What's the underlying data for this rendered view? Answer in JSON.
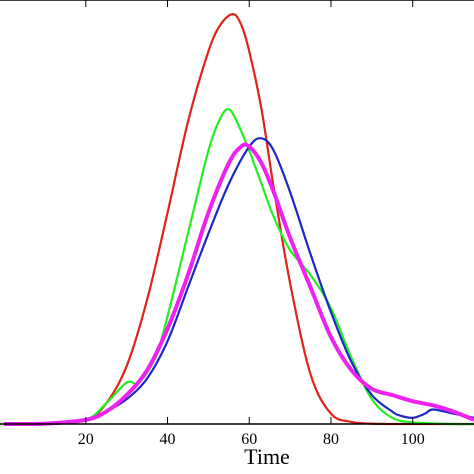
{
  "chart_data": {
    "type": "line",
    "xlabel": "Time",
    "ylabel": "",
    "title": "",
    "xlim": [
      -1,
      115
    ],
    "ylim": [
      0,
      1
    ],
    "xticks": [
      20,
      40,
      60,
      80,
      100
    ],
    "xtick_labels": [
      "20",
      "40",
      "60",
      "80",
      "100"
    ],
    "grid": false,
    "series": [
      {
        "color": "#e0231c",
        "x": [
          0,
          10,
          20,
          25,
          30,
          35,
          40,
          45,
          50,
          53,
          56,
          58,
          60,
          63,
          66,
          70,
          75,
          80,
          85,
          90,
          95,
          100,
          110,
          115
        ],
        "y": [
          0,
          0.001,
          0.01,
          0.05,
          0.14,
          0.3,
          0.51,
          0.73,
          0.9,
          0.965,
          0.99,
          0.965,
          0.9,
          0.76,
          0.57,
          0.34,
          0.12,
          0.025,
          0.005,
          0.001,
          0,
          0,
          0,
          0
        ]
      },
      {
        "color": "#22ee22",
        "x": [
          0,
          10,
          20,
          25,
          30,
          33,
          37,
          40,
          45,
          50,
          53,
          55,
          57,
          60,
          63,
          66,
          70,
          75,
          80,
          85,
          90,
          95,
          100,
          110,
          115
        ],
        "y": [
          0,
          0.001,
          0.01,
          0.05,
          0.1,
          0.1,
          0.16,
          0.26,
          0.46,
          0.66,
          0.74,
          0.76,
          0.73,
          0.66,
          0.58,
          0.5,
          0.42,
          0.36,
          0.28,
          0.16,
          0.06,
          0.015,
          0.004,
          0,
          0
        ]
      },
      {
        "color": "#1c28c4",
        "x": [
          0,
          10,
          20,
          25,
          30,
          35,
          40,
          45,
          50,
          55,
          60,
          63,
          66,
          70,
          75,
          80,
          85,
          90,
          95,
          97,
          100,
          103,
          105,
          110,
          115
        ],
        "y": [
          0,
          0.001,
          0.008,
          0.03,
          0.06,
          0.11,
          0.2,
          0.33,
          0.46,
          0.58,
          0.67,
          0.69,
          0.66,
          0.56,
          0.41,
          0.27,
          0.15,
          0.07,
          0.03,
          0.02,
          0.015,
          0.025,
          0.035,
          0.025,
          0.015
        ]
      },
      {
        "color": "#ee22ee",
        "x": [
          0,
          10,
          20,
          25,
          30,
          35,
          40,
          45,
          50,
          55,
          58,
          60,
          63,
          66,
          70,
          75,
          80,
          85,
          90,
          95,
          100,
          105,
          110,
          115
        ],
        "y": [
          0,
          0.001,
          0.01,
          0.03,
          0.07,
          0.13,
          0.23,
          0.36,
          0.51,
          0.63,
          0.67,
          0.67,
          0.63,
          0.56,
          0.45,
          0.33,
          0.21,
          0.13,
          0.085,
          0.07,
          0.055,
          0.045,
          0.03,
          0.01
        ]
      }
    ]
  }
}
